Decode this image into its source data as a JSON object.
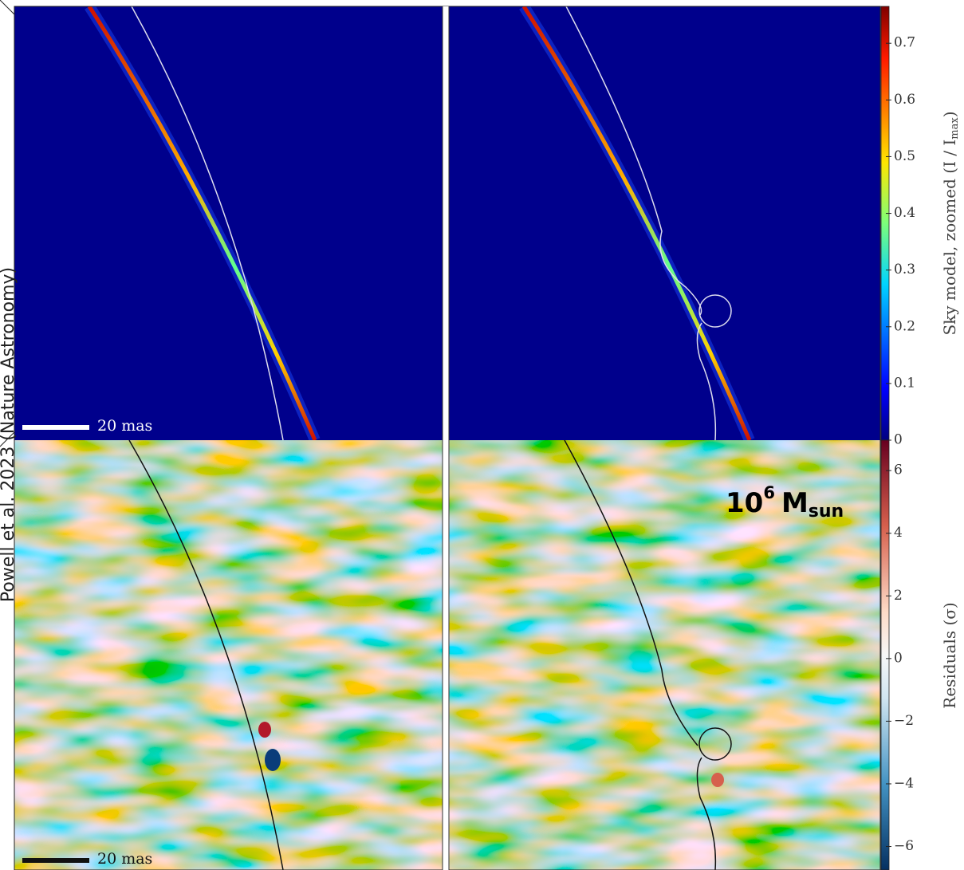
{
  "side_caption": "Powell et al. 2023 (Nature Astronomy)",
  "panels": [
    {
      "scale_bar": "20 mas"
    },
    {
      "annotation": {
        "base": "10",
        "exponent": "6",
        "symbol": "M",
        "subscript": "sun"
      }
    },
    {
      "scale_bar": "20 mas"
    }
  ],
  "colorbars": [
    {
      "label_prefix": "Sky model, zoomed (I / I",
      "label_subscript": "max",
      "label_suffix": ")",
      "range": [
        0,
        0.765
      ],
      "ticks": [
        0.0,
        0.1,
        0.2,
        0.3,
        0.4,
        0.5,
        0.6,
        0.7
      ]
    },
    {
      "label_prefix": "Residuals (σ)",
      "range": [
        -6.75,
        6.97
      ],
      "ticks": [
        {
          "value": -6,
          "label": "−6"
        },
        {
          "value": -4,
          "label": "−4"
        },
        {
          "value": -2,
          "label": "−2"
        },
        0,
        2,
        4,
        6
      ]
    }
  ]
}
